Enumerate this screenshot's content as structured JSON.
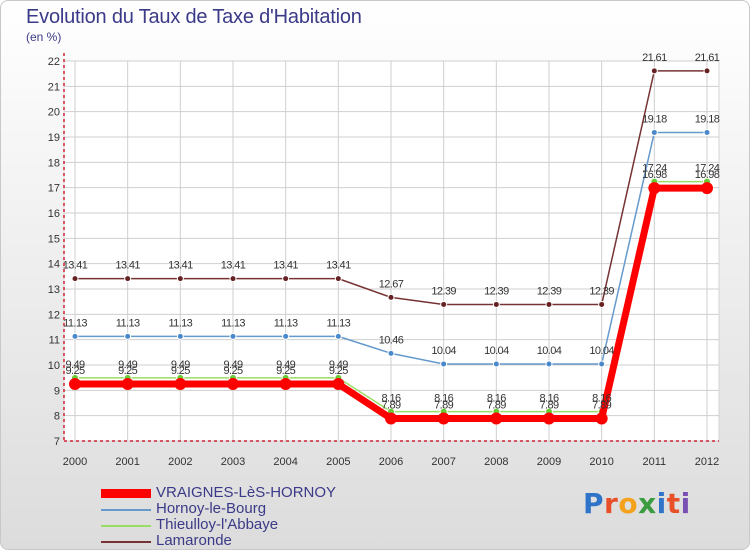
{
  "title": "Evolution du Taux de Taxe d'Habitation",
  "unit_label": "(en %)",
  "logo_text": "Proxiti",
  "colors": {
    "axis": "#cc2233",
    "grid": "#cfcfcf",
    "text": "#3a3a88",
    "value_text": "#333333"
  },
  "chart_data": {
    "type": "line",
    "title": "Evolution du Taux de Taxe d'Habitation",
    "ylabel": "(en %)",
    "xlabel": "",
    "ylim": [
      7,
      22
    ],
    "yticks": [
      7,
      8,
      9,
      10,
      11,
      12,
      13,
      14,
      15,
      16,
      17,
      18,
      19,
      20,
      21,
      22
    ],
    "grid": true,
    "legend_position": "bottom-left",
    "x": [
      "2000",
      "2001",
      "2002",
      "2003",
      "2004",
      "2005",
      "2006",
      "2007",
      "2008",
      "2009",
      "2010",
      "2011",
      "2012"
    ],
    "series": [
      {
        "name": "VRAIGNES-LèS-HORNOY",
        "color": "#ff0000",
        "values": [
          9.25,
          9.25,
          9.25,
          9.25,
          9.25,
          9.25,
          7.89,
          7.89,
          7.89,
          7.89,
          7.89,
          16.98,
          16.98
        ],
        "labels": [
          "9.25",
          "9.25",
          "9.25",
          "9.25",
          "9.25",
          "9.25",
          "7.89",
          "7.89",
          "7.89",
          "7.89",
          "7.89",
          "16.98",
          "16.98"
        ]
      },
      {
        "name": "Hornoy-le-Bourg",
        "color": "#6699cc",
        "values": [
          11.13,
          11.13,
          11.13,
          11.13,
          11.13,
          11.13,
          10.46,
          10.04,
          10.04,
          10.04,
          10.04,
          19.18,
          19.18
        ],
        "labels": [
          "11.13",
          "11.13",
          "11.13",
          "11.13",
          "11.13",
          "11.13",
          "10.46",
          "10.04",
          "10.04",
          "10.04",
          "10.04",
          "19.18",
          "19.18"
        ]
      },
      {
        "name": "Thieulloy-l'Abbaye",
        "color": "#99dd66",
        "values": [
          9.49,
          9.49,
          9.49,
          9.49,
          9.49,
          9.49,
          8.16,
          8.16,
          8.16,
          8.16,
          8.16,
          17.24,
          17.24
        ],
        "labels": [
          "9.49",
          "9.49",
          "9.49",
          "9.49",
          "9.49",
          "9.49",
          "8.16",
          "8.16",
          "8.16",
          "8.16",
          "8.16",
          "17.24",
          "17.24"
        ]
      },
      {
        "name": "Lamaronde",
        "color": "#773333",
        "values": [
          13.41,
          13.41,
          13.41,
          13.41,
          13.41,
          13.41,
          12.67,
          12.39,
          12.39,
          12.39,
          12.39,
          21.61,
          21.61
        ],
        "labels": [
          "13.41",
          "13.41",
          "13.41",
          "13.41",
          "13.41",
          "13.41",
          "12.67",
          "12.39",
          "12.39",
          "12.39",
          "12.39",
          "21.61",
          "21.61"
        ]
      }
    ]
  }
}
